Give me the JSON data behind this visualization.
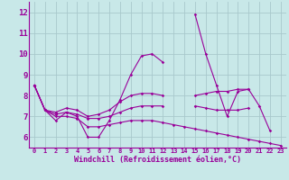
{
  "xlabel": "Windchill (Refroidissement éolien,°C)",
  "xlim": [
    -0.5,
    23.5
  ],
  "ylim": [
    5.5,
    12.5
  ],
  "yticks": [
    6,
    7,
    8,
    9,
    10,
    11,
    12
  ],
  "xticks": [
    0,
    1,
    2,
    3,
    4,
    5,
    6,
    7,
    8,
    9,
    10,
    11,
    12,
    13,
    14,
    15,
    16,
    17,
    18,
    19,
    20,
    21,
    22,
    23
  ],
  "bg_color": "#c8e8e8",
  "line_color": "#990099",
  "grid_color": "#a8c8cc",
  "lines": [
    [
      8.5,
      7.3,
      6.8,
      7.2,
      7.0,
      6.0,
      6.0,
      6.8,
      7.8,
      9.0,
      9.9,
      10.0,
      9.6,
      null,
      null,
      11.9,
      10.0,
      8.5,
      7.0,
      8.2,
      8.3,
      7.5,
      6.3,
      null
    ],
    [
      8.5,
      7.3,
      7.2,
      7.4,
      7.3,
      7.0,
      7.1,
      7.3,
      7.7,
      8.0,
      8.1,
      8.1,
      8.0,
      null,
      null,
      8.0,
      8.1,
      8.2,
      8.2,
      8.3,
      8.3,
      null,
      null,
      null
    ],
    [
      8.5,
      7.3,
      7.1,
      7.2,
      7.1,
      6.9,
      6.9,
      7.0,
      7.2,
      7.4,
      7.5,
      7.5,
      7.5,
      null,
      null,
      7.5,
      7.4,
      7.3,
      7.3,
      7.3,
      7.4,
      null,
      null,
      null
    ],
    [
      8.5,
      7.3,
      7.0,
      7.0,
      6.9,
      6.5,
      6.5,
      6.6,
      6.7,
      6.8,
      6.8,
      6.8,
      6.7,
      6.6,
      6.5,
      6.4,
      6.3,
      6.2,
      6.1,
      6.0,
      5.9,
      5.8,
      5.7,
      5.6
    ]
  ]
}
